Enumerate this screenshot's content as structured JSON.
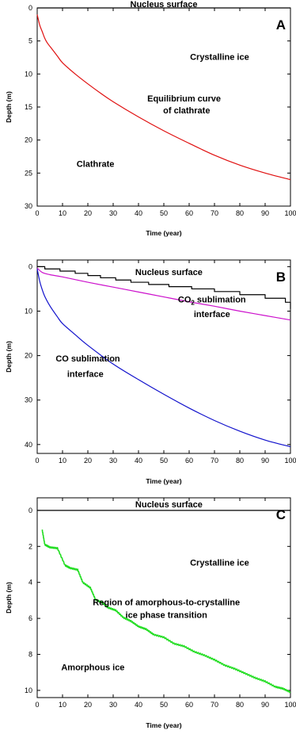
{
  "chart_data": [
    {
      "type": "line",
      "panel_label": "A",
      "xlabel": "Time (year)",
      "ylabel": "Depth (m)",
      "xlim": [
        0,
        100
      ],
      "ylim": [
        30,
        0
      ],
      "xticks": [
        0,
        10,
        20,
        30,
        40,
        50,
        60,
        70,
        80,
        90,
        100
      ],
      "yticks": [
        0,
        5,
        10,
        15,
        20,
        25,
        30
      ],
      "series": [
        {
          "color": "#000000",
          "kind": "flat",
          "x": [
            0,
            100
          ],
          "y": [
            0,
            0
          ]
        },
        {
          "color": "#e01010",
          "kind": "smooth",
          "x": [
            0,
            1,
            2,
            3,
            4,
            6,
            8,
            10,
            15,
            20,
            25,
            30,
            40,
            50,
            60,
            70,
            80,
            90,
            100
          ],
          "y": [
            1,
            2.6,
            3.6,
            4.6,
            5.3,
            6.3,
            7.3,
            8.3,
            10.0,
            11.5,
            12.9,
            14.2,
            16.5,
            18.6,
            20.5,
            22.3,
            23.8,
            25.0,
            26.0
          ]
        }
      ],
      "annotations": [
        {
          "text": "Nucleus surface",
          "x": 50,
          "y": -0.6
        },
        {
          "text": "Crystalline ice",
          "x": 72,
          "y": 7.4
        },
        {
          "text": "Equilibrium curve",
          "x": 58,
          "y": 13.7
        },
        {
          "text": "of clathrate",
          "x": 59,
          "y": 15.5
        },
        {
          "text": "Clathrate",
          "x": 23,
          "y": 23.6
        }
      ]
    },
    {
      "type": "line",
      "panel_label": "B",
      "xlabel": "Time (year)",
      "ylabel": "Depth (m)",
      "xlim": [
        0,
        100
      ],
      "ylim": [
        42,
        -1.5
      ],
      "xticks": [
        0,
        10,
        20,
        30,
        40,
        50,
        60,
        70,
        80,
        90,
        100
      ],
      "yticks": [
        0,
        10,
        20,
        30,
        40
      ],
      "series": [
        {
          "color": "#000000",
          "kind": "steps",
          "x": [
            0,
            3,
            9,
            15,
            20,
            25,
            31,
            37,
            44,
            52,
            61,
            70,
            80,
            90,
            98,
            100
          ],
          "y": [
            0,
            0.5,
            1.0,
            1.5,
            2.0,
            2.5,
            3.0,
            3.5,
            4.0,
            4.5,
            5.0,
            5.6,
            6.3,
            7.1,
            8.0,
            9.5
          ]
        },
        {
          "color": "#cc11cc",
          "kind": "smooth",
          "x": [
            0,
            2,
            5,
            10,
            20,
            30,
            40,
            50,
            60,
            70,
            80,
            90,
            100
          ],
          "y": [
            0.3,
            1.3,
            1.8,
            2.3,
            3.5,
            4.6,
            5.7,
            6.8,
            7.9,
            8.9,
            10.0,
            11.0,
            12.0
          ]
        },
        {
          "color": "#1111cc",
          "kind": "smooth",
          "x": [
            0,
            1,
            2,
            3,
            5,
            8,
            10,
            15,
            20,
            30,
            40,
            50,
            60,
            70,
            80,
            90,
            100
          ],
          "y": [
            0.5,
            3.3,
            5.2,
            6.7,
            8.8,
            11.3,
            12.8,
            15.3,
            17.7,
            21.9,
            25.4,
            28.7,
            31.8,
            34.6,
            37.0,
            39.0,
            40.5
          ]
        }
      ],
      "annotations": [
        {
          "text": "Nucleus surface",
          "x": 52,
          "y": 1.2
        },
        {
          "text": "CO2 sublimation",
          "x": 69,
          "y": 7.3
        },
        {
          "text": "interface",
          "x": 69,
          "y": 10.6
        },
        {
          "text": "CO sublimation",
          "x": 20,
          "y": 20.6
        },
        {
          "text": "interface",
          "x": 19,
          "y": 24.1
        }
      ]
    },
    {
      "type": "line",
      "panel_label": "C",
      "xlabel": "Time (year)",
      "ylabel": "Depth (m)",
      "xlim": [
        0,
        100
      ],
      "ylim": [
        10.4,
        -0.7
      ],
      "xticks": [
        0,
        10,
        20,
        30,
        40,
        50,
        60,
        70,
        80,
        90,
        100
      ],
      "yticks": [
        0,
        2,
        4,
        6,
        8,
        10
      ],
      "series": [
        {
          "color": "#000000",
          "kind": "flat",
          "x": [
            0,
            100
          ],
          "y": [
            0,
            0
          ]
        },
        {
          "color": "#22dd22",
          "kind": "wobbly",
          "x": [
            2,
            3,
            5,
            8,
            11,
            13,
            16,
            18,
            21,
            23,
            26,
            28,
            31,
            34,
            37,
            40,
            43,
            46,
            50,
            54,
            58,
            62,
            66,
            70,
            74,
            78,
            82,
            86,
            90,
            94,
            97,
            100
          ],
          "y": [
            1.1,
            1.9,
            2.05,
            2.1,
            3.05,
            3.2,
            3.3,
            4.0,
            4.3,
            4.95,
            5.15,
            5.4,
            5.55,
            5.95,
            6.15,
            6.45,
            6.6,
            6.9,
            7.05,
            7.4,
            7.55,
            7.85,
            8.05,
            8.3,
            8.6,
            8.8,
            9.05,
            9.3,
            9.5,
            9.8,
            9.9,
            10.1
          ]
        }
      ],
      "annotations": [
        {
          "text": "Nucleus surface",
          "x": 52,
          "y": -0.35
        },
        {
          "text": "Crystalline ice",
          "x": 72,
          "y": 2.9
        },
        {
          "text": "Region of amorphous-to-crystalline",
          "x": 51,
          "y": 5.1
        },
        {
          "text": "ice phase transition",
          "x": 51,
          "y": 5.8
        },
        {
          "text": "Amorphous ice",
          "x": 22,
          "y": 8.7
        }
      ]
    }
  ]
}
